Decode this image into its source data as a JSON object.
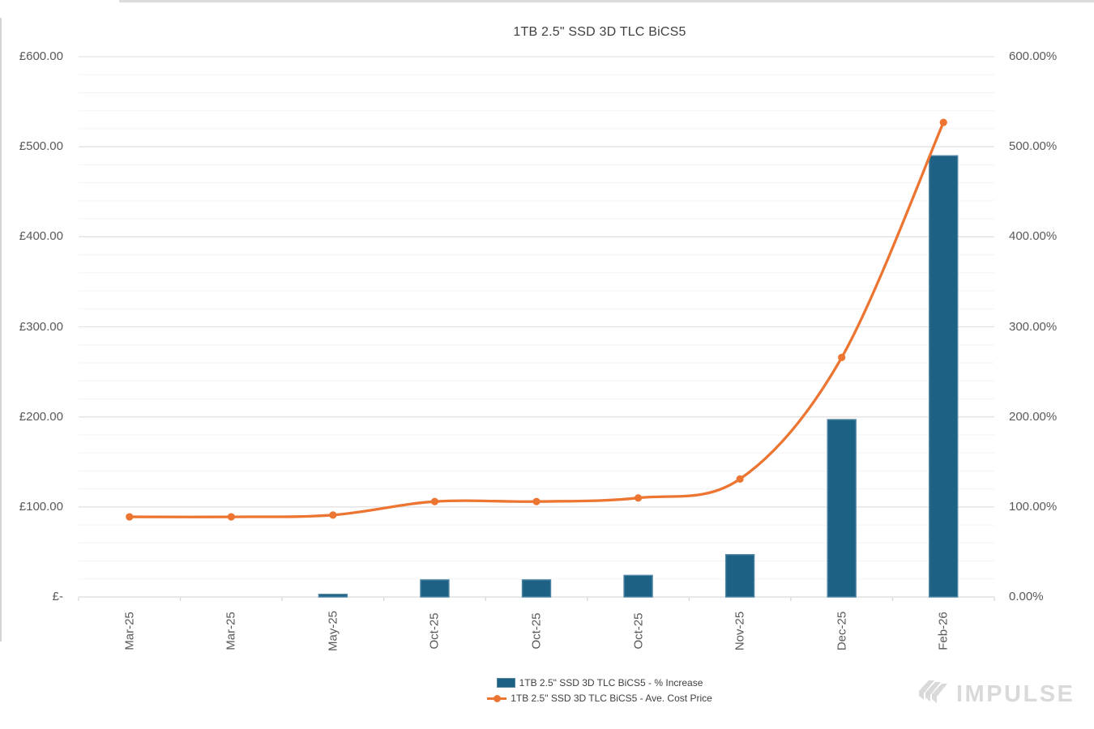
{
  "chart_data": {
    "type": "bar",
    "title": "1TB 2.5\" SSD 3D TLC BiCS5",
    "categories": [
      "Mar-25",
      "Mar-25",
      "May-25",
      "Oct-25",
      "Oct-25",
      "Oct-25",
      "Nov-25",
      "Dec-25",
      "Feb-26"
    ],
    "series": [
      {
        "name": "1TB 2.5\" SSD 3D TLC BiCS5 - % Increase",
        "type": "bar",
        "axis": "right",
        "values": [
          0,
          0,
          3,
          19,
          19,
          24,
          47,
          197,
          490
        ]
      },
      {
        "name": "1TB 2.5\" SSD 3D TLC BiCS5 - Ave. Cost Price",
        "type": "line",
        "axis": "left",
        "values": [
          89,
          89,
          91,
          106,
          106,
          110,
          131,
          266,
          527
        ]
      }
    ],
    "left_axis": {
      "labels": [
        "£600.00",
        "£500.00",
        "£400.00",
        "£300.00",
        "£200.00",
        "£100.00",
        "£-"
      ],
      "min": 0,
      "max": 600,
      "major_step": 100,
      "minor_step": 20
    },
    "right_axis": {
      "labels": [
        "600.00%",
        "500.00%",
        "400.00%",
        "300.00%",
        "200.00%",
        "100.00%",
        "0.00%"
      ],
      "min": 0,
      "max": 600,
      "major_step": 100
    },
    "grid": "horizontal major+minor",
    "legend_position": "bottom-center"
  },
  "legend": {
    "items": [
      {
        "swatch": "bar-swatch",
        "label": "1TB 2.5\" SSD 3D TLC BiCS5 - % Increase"
      },
      {
        "swatch": "line-marker-swatch",
        "label": "1TB 2.5\" SSD 3D TLC BiCS5 - Ave. Cost Price"
      }
    ]
  },
  "watermark": {
    "text": "IMPULSE",
    "icon": "triple-slash-logo-icon"
  },
  "colors": {
    "bar_fill": "#1d6284",
    "bar_stroke": "#4f86a3",
    "line": "#ec7532",
    "grid_major": "#e2e2e2",
    "grid_minor": "#f3f3f3",
    "axis_line": "#d9d9d9",
    "axis_text": "#595959",
    "title_text": "#404040",
    "watermark_gray": "#d9d9d9"
  }
}
